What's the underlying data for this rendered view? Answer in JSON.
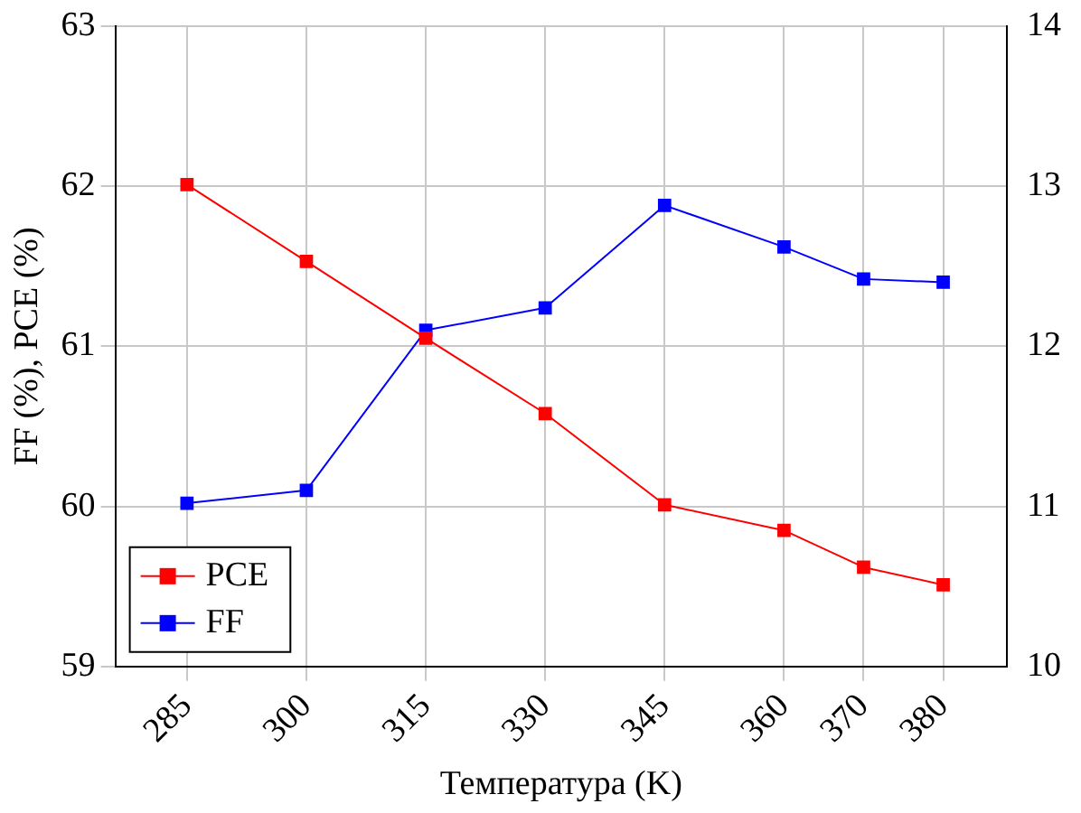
{
  "chart_data": {
    "type": "line",
    "xlabel": "Температура (K)",
    "ylabel": "FF (%), PCE (%)",
    "x": [
      285,
      300,
      315,
      330,
      345,
      360,
      370,
      380
    ],
    "xlim": [
      276,
      388
    ],
    "xticks": [
      285,
      300,
      315,
      330,
      345,
      360,
      370,
      380
    ],
    "ylim": [
      59,
      63
    ],
    "yticks": [
      59,
      60,
      61,
      62,
      63
    ],
    "y2lim": [
      10,
      14
    ],
    "y2ticks": [
      10,
      11,
      12,
      13,
      14
    ],
    "series": [
      {
        "name": "PCE",
        "color": "#ff0000",
        "axis": "y2",
        "values": [
          13.01,
          12.53,
          12.05,
          11.58,
          11.01,
          10.85,
          10.62,
          10.51
        ]
      },
      {
        "name": "FF",
        "color": "#0000ff",
        "axis": "y",
        "values": [
          60.02,
          60.1,
          61.1,
          61.24,
          61.88,
          61.62,
          61.42,
          61.4
        ]
      }
    ],
    "grid": true,
    "legend": "bottom left",
    "marker": "square",
    "line_style": "solid"
  }
}
